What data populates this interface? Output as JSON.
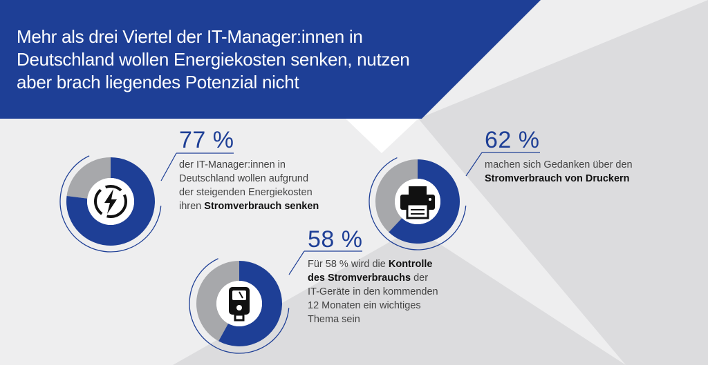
{
  "title": "Mehr als drei Viertel der IT-Manager:innen in Deutschland wollen Energiekosten senken, nutzen aber brach liegendes Potenzial nicht",
  "colors": {
    "blue": "#1e3f96",
    "gray": "#a7a8ab",
    "light_bg": "#eeeeef",
    "mid_bg": "#dcdcde",
    "white": "#ffffff",
    "icon": "#111111"
  },
  "chart_data": [
    {
      "type": "pie",
      "icon": "lightning-bolt-icon",
      "values": [
        77,
        23
      ],
      "percent_label": "77 %",
      "text": [
        {
          "t": "der IT-Manager:innen in",
          "b": false
        },
        {
          "t": "Deutschland wollen aufgrund",
          "b": false
        },
        {
          "t": "der steigenden Energiekosten",
          "b": false
        },
        {
          "t": "ihren ",
          "b": false
        },
        {
          "t": "Stromverbrauch senken",
          "b": true
        }
      ]
    },
    {
      "type": "pie",
      "icon": "printer-icon",
      "values": [
        62,
        38
      ],
      "percent_label": "62 %",
      "text": [
        {
          "t": "machen sich Gedanken über den",
          "b": false
        },
        {
          "t": "Stromverbrauch von Druckern",
          "b": true
        }
      ]
    },
    {
      "type": "pie",
      "icon": "power-meter-icon",
      "values": [
        58,
        42
      ],
      "percent_label": "58 %",
      "text": [
        {
          "t": "Für 58 % wird die ",
          "b": false
        },
        {
          "t": "Kontrolle",
          "b": true
        },
        {
          "t": "des Stromverbrauchs",
          "b": true
        },
        {
          "t": " der",
          "b": false
        },
        {
          "t": "IT-Geräte in den kommenden",
          "b": false
        },
        {
          "t": "12 Monaten ein wichtiges",
          "b": false
        },
        {
          "t": "Thema sein",
          "b": false
        }
      ]
    }
  ]
}
